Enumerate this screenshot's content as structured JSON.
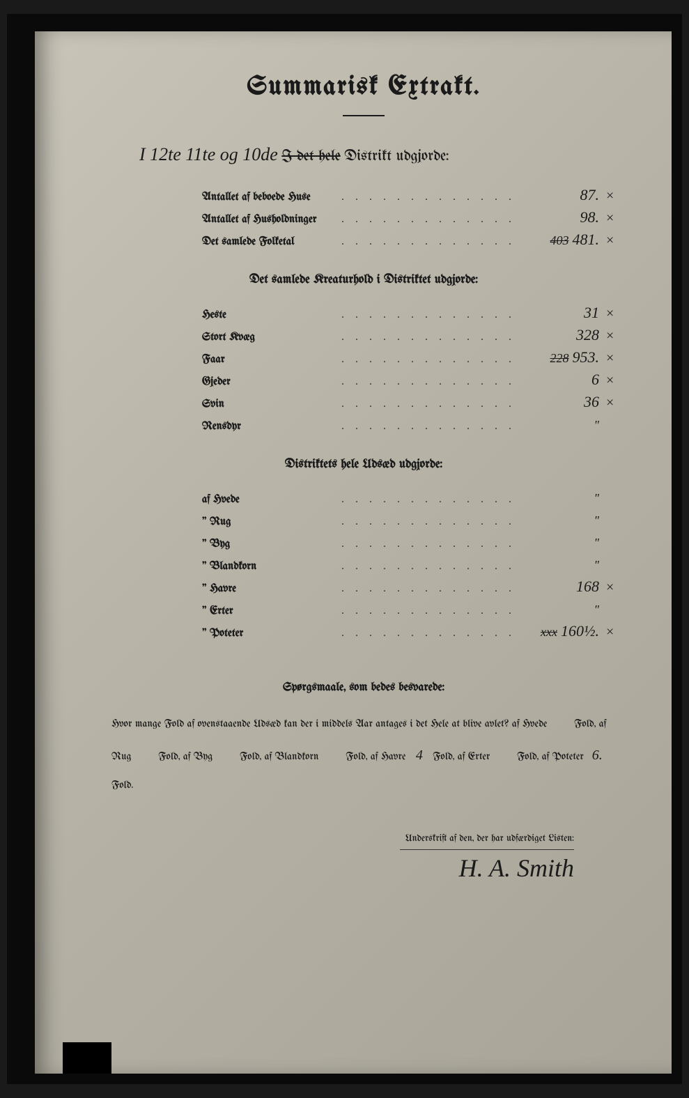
{
  "title": "Summarisk Extrakt.",
  "district_line": {
    "prefix_hand": "I 12te 11te og 10de",
    "struck": "I det hele",
    "suffix": "Distrikt udgjorde:"
  },
  "section1": {
    "rows": [
      {
        "label": "Antallet af beboede Huse",
        "value": "87.",
        "struck": "",
        "mark": "×"
      },
      {
        "label": "Antallet af Husholdninger",
        "value": "98.",
        "struck": "",
        "mark": "×"
      },
      {
        "label": "Det samlede Folketal",
        "value": "481.",
        "struck": "403",
        "mark": "×"
      }
    ]
  },
  "section2": {
    "title": "Det samlede Kreaturhold i Distriktet udgjorde:",
    "rows": [
      {
        "label": "Heste",
        "value": "31",
        "struck": "",
        "mark": "×"
      },
      {
        "label": "Stort Kvæg",
        "value": "328",
        "struck": "",
        "mark": "×"
      },
      {
        "label": "Faar",
        "value": "953.",
        "struck": "228",
        "mark": "×"
      },
      {
        "label": "Gjeder",
        "value": "6",
        "struck": "",
        "mark": "×"
      },
      {
        "label": "Svin",
        "value": "36",
        "struck": "",
        "mark": "×"
      },
      {
        "label": "Rensdyr",
        "value": "\"",
        "struck": "",
        "mark": ""
      }
    ]
  },
  "section3": {
    "title": "Distriktets hele Udsæd udgjorde:",
    "rows": [
      {
        "label": "af Hvede",
        "value": "\"",
        "struck": "",
        "mark": ""
      },
      {
        "label": "\" Rug",
        "value": "\"",
        "struck": "",
        "mark": ""
      },
      {
        "label": "\" Byg",
        "value": "\"",
        "struck": "",
        "mark": ""
      },
      {
        "label": "\" Blandkorn",
        "value": "\"",
        "struck": "",
        "mark": ""
      },
      {
        "label": "\" Havre",
        "value": "168",
        "struck": "",
        "mark": "×"
      },
      {
        "label": "\" Erter",
        "value": "\"",
        "struck": "",
        "mark": ""
      },
      {
        "label": "\" Poteter",
        "value": "160½.",
        "struck": "xxx",
        "mark": "×"
      }
    ]
  },
  "questions": {
    "title": "Spørgsmaale, som bedes besvarede:",
    "text_parts": {
      "p1": "Hvor mange Fold af ovenstaaende Udsæd kan der i middels Aar antages i det Hele at blive avlet? af Hvede",
      "fold": "Fold,",
      "rug": "af Rug",
      "byg": "Fold, af Byg",
      "bland": "Fold, af Blandkorn",
      "havre": "Fold, af Havre",
      "erter": "Fold, af Erter",
      "poteter": "af Poteter",
      "fold_end": "Fold."
    },
    "values": {
      "hvede": "",
      "rug": "",
      "byg": "",
      "blandkorn": "",
      "havre": "4",
      "erter": "",
      "poteter": "6."
    }
  },
  "signature": {
    "label": "Underskrift af den, der har udfærdiget Listen:",
    "name": "H. A. Smith"
  },
  "dots": ". . . . . . . . . . . . . ."
}
